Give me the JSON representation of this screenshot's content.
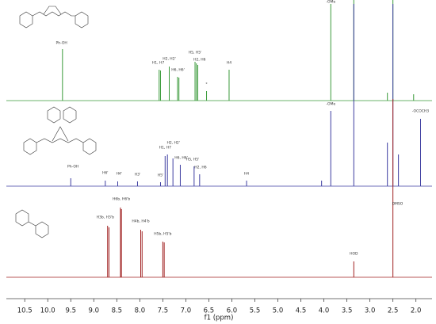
{
  "chart_data": {
    "type": "nmr-stack",
    "x_label": "f1 (ppm)",
    "xlim": [
      10.9,
      1.65
    ],
    "xticks": [
      10.5,
      {
        "value": 10,
        "label": "10.0"
      },
      9.5,
      {
        "value": 9,
        "label": "9.0"
      },
      8.5,
      {
        "value": 8,
        "label": "8.0"
      },
      7.5,
      {
        "value": 7,
        "label": "7.0"
      },
      6.5,
      {
        "value": 6,
        "label": "6.0"
      },
      5.5,
      {
        "value": 5,
        "label": "5.0"
      },
      4.5,
      {
        "value": 4,
        "label": "4.0"
      },
      3.5,
      {
        "value": 3,
        "label": "3.0"
      },
      2.5,
      {
        "value": 2,
        "label": "2.0"
      }
    ],
    "series": [
      {
        "color": "#3a9a3a",
        "x": [
          9.68,
          7.58,
          7.55,
          7.36,
          7.18,
          7.15,
          6.8,
          6.77,
          6.74,
          6.55,
          6.06,
          3.85,
          3.35,
          2.62,
          2.5,
          2.05
        ],
        "values": [
          65,
          39,
          38,
          43,
          30,
          29,
          49,
          47,
          45,
          12,
          39,
          122,
          127,
          10,
          127,
          8
        ],
        "labels": [
          {
            "text": "Ph-OH",
            "x": 9.7,
            "y": 70
          },
          {
            "text": "H1, H7",
            "x": 7.6,
            "y": 45
          },
          {
            "text": "H2, H2'",
            "x": 7.36,
            "y": 50
          },
          {
            "text": "H6, H6'",
            "x": 7.17,
            "y": 36
          },
          {
            "text": "H5, H5'",
            "x": 6.8,
            "y": 58
          },
          {
            "text": "H2, H6",
            "x": 6.7,
            "y": 49
          },
          {
            "text": "*",
            "x": 6.55,
            "y": 18
          },
          {
            "text": "H4",
            "x": 6.06,
            "y": 45
          },
          {
            "text": "-OMe",
            "x": 3.85,
            "y": 122
          }
        ]
      },
      {
        "color": "#3c3ca0",
        "x": [
          9.5,
          8.75,
          8.48,
          8.05,
          7.55,
          7.45,
          7.4,
          7.28,
          7.12,
          6.82,
          6.7,
          5.68,
          4.05,
          3.85,
          3.35,
          2.62,
          2.5,
          2.38,
          1.9
        ],
        "values": [
          10,
          7,
          6,
          6,
          5,
          38,
          40,
          35,
          27,
          25,
          15,
          7,
          7,
          95,
          230,
          55,
          230,
          40,
          85
        ],
        "labels": [
          {
            "text": "Ph-OH",
            "x": 9.45,
            "y": 22
          },
          {
            "text": "H6'",
            "x": 8.75,
            "y": 14
          },
          {
            "text": "H4'",
            "x": 8.45,
            "y": 13
          },
          {
            "text": "H3'",
            "x": 8.05,
            "y": 12
          },
          {
            "text": "H5'",
            "x": 7.55,
            "y": 11
          },
          {
            "text": "H1, H7",
            "x": 7.45,
            "y": 46
          },
          {
            "text": "H2, H2'",
            "x": 7.27,
            "y": 52
          },
          {
            "text": "H6, H6'",
            "x": 7.1,
            "y": 33
          },
          {
            "text": "H5, H5'",
            "x": 6.85,
            "y": 31
          },
          {
            "text": "H2, H6",
            "x": 6.68,
            "y": 21
          },
          {
            "text": "H4",
            "x": 5.68,
            "y": 13
          },
          {
            "text": "-OMe",
            "x": 3.85,
            "y": 101
          },
          {
            "text": "-OCOCH3",
            "x": 1.9,
            "y": 92
          }
        ]
      },
      {
        "color": "#a02020",
        "x": [
          8.7,
          8.67,
          8.42,
          8.4,
          7.98,
          7.95,
          7.5,
          7.47,
          3.35,
          2.5
        ],
        "values": [
          65,
          63,
          88,
          86,
          60,
          58,
          45,
          44,
          20,
          225
        ],
        "labels": [
          {
            "text": "H3b, H3'b",
            "x": 8.75,
            "y": 73
          },
          {
            "text": "H6b, H6'b",
            "x": 8.4,
            "y": 96
          },
          {
            "text": "H4b, H4'b",
            "x": 7.98,
            "y": 68
          },
          {
            "text": "H5b, H5'b",
            "x": 7.5,
            "y": 52
          },
          {
            "text": "HOD",
            "x": 3.35,
            "y": 27
          },
          {
            "text": "DMSO",
            "x": 2.4,
            "y": 90
          }
        ]
      }
    ]
  }
}
